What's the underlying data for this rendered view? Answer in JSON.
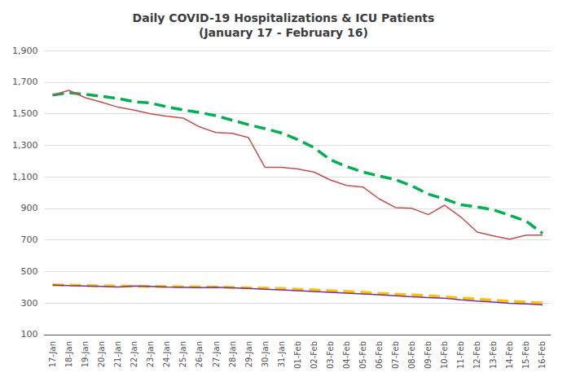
{
  "chart_data": {
    "type": "line",
    "title": "Daily COVID-19 Hospitalizations & ICU Patients\n(January 17 - February 16)",
    "categories": [
      "17-Jan",
      "18-Jan",
      "19-Jan",
      "20-Jan",
      "21-Jan",
      "22-Jan",
      "23-Jan",
      "24-Jan",
      "25-Jan",
      "26-Jan",
      "27-Jan",
      "28-Jan",
      "29-Jan",
      "30-Jan",
      "31-Jan",
      "01-Feb",
      "02-Feb",
      "03-Feb",
      "04-Feb",
      "05-Feb",
      "06-Feb",
      "07-Feb",
      "08-Feb",
      "09-Feb",
      "10-Feb",
      "11-Feb",
      "12-Feb",
      "13-Feb",
      "14-Feb",
      "15-Feb",
      "16-Feb"
    ],
    "series": [
      {
        "color": "#00B050",
        "line_style": "dashed",
        "values": [
          1618,
          1632,
          1622,
          1610,
          1596,
          1576,
          1567,
          1543,
          1523,
          1507,
          1487,
          1458,
          1430,
          1405,
          1378,
          1336,
          1285,
          1208,
          1165,
          1130,
          1105,
          1082,
          1042,
          990,
          960,
          922,
          909,
          890,
          855,
          819,
          741
        ]
      },
      {
        "color": "#C0504D",
        "line_style": "solid",
        "values": [
          1618,
          1647,
          1601,
          1572,
          1541,
          1522,
          1499,
          1484,
          1472,
          1416,
          1380,
          1375,
          1348,
          1160,
          1160,
          1150,
          1130,
          1080,
          1045,
          1035,
          960,
          905,
          900,
          860,
          920,
          845,
          750,
          725,
          705,
          730,
          730
        ]
      },
      {
        "color": "#FFC000",
        "line_style": "dashed",
        "values": [
          415,
          413,
          411,
          409,
          408,
          407,
          406,
          404,
          403,
          403,
          401,
          399,
          397,
          395,
          392,
          387,
          383,
          378,
          373,
          368,
          362,
          357,
          352,
          346,
          339,
          332,
          325,
          318,
          311,
          306,
          300
        ]
      },
      {
        "color": "#7030A0",
        "line_style": "solid",
        "values": [
          415,
          411,
          408,
          405,
          402,
          408,
          405,
          402,
          400,
          398,
          400,
          396,
          392,
          388,
          383,
          378,
          373,
          368,
          363,
          358,
          352,
          346,
          340,
          334,
          330,
          320,
          312,
          306,
          298,
          294,
          290
        ]
      }
    ],
    "ylim": [
      100,
      1900
    ],
    "yticks": [
      100,
      300,
      500,
      700,
      900,
      {
        "value": 1100,
        "label": "1,100"
      },
      {
        "value": 1300,
        "label": "1,300"
      },
      {
        "value": 1500,
        "label": "1,500"
      },
      {
        "value": 1700,
        "label": "1,700"
      },
      {
        "value": 1900,
        "label": "1,900"
      }
    ],
    "grid": true
  }
}
